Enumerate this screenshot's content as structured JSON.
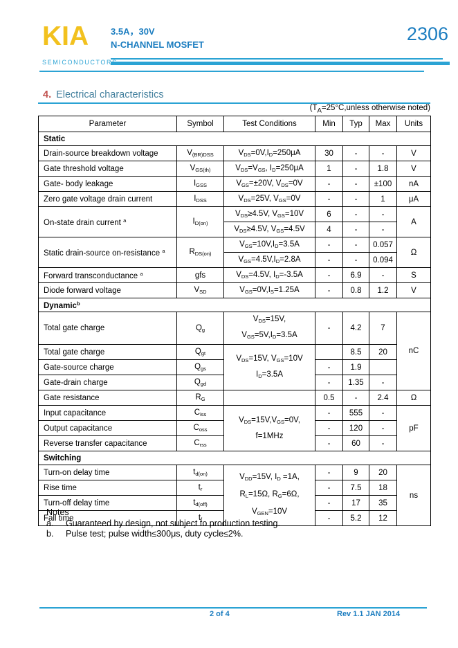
{
  "colors": {
    "accent_cyan": "#2ba3d4",
    "brand_blue": "#1b7dc0",
    "logo_yellow": "#f2c11e",
    "num_red": "#c0504d",
    "title_blue": "#44809e"
  },
  "header": {
    "brand": "KIA",
    "brand_sub": "SEMICONDUCTORS",
    "spec_line1": "3.5A，30V",
    "spec_line2": "N-CHANNEL MOSFET",
    "part_number": "2306"
  },
  "section": {
    "number": "4.",
    "title": "Electrical characteristics",
    "condition_note": "(T~A~=25°C,unless otherwise noted)"
  },
  "table": {
    "headers": {
      "parameter": "Parameter",
      "symbol": "Symbol",
      "conditions": "Test Conditions",
      "min": "Min",
      "typ": "Typ",
      "max": "Max",
      "units": "Units"
    },
    "sections": {
      "static": "Static",
      "dynamic": "Dynamic^b^",
      "switching": "Switching"
    },
    "rows": {
      "vbr": {
        "param": "Drain-source breakdown voltage",
        "symbol": "V~(BR)DSS~",
        "cond": "V~DS~=0V,I~D~=250μA",
        "min": "30",
        "typ": "-",
        "max": "-",
        "units": "V"
      },
      "vgsth": {
        "param": "Gate threshold voltage",
        "symbol": "V~GS(th)~",
        "cond": "V~DS~=V~GS~, I~D~=250μA",
        "min": "1",
        "typ": "-",
        "max": "1.8",
        "units": "V"
      },
      "igss": {
        "param": "Gate- body leakage",
        "symbol": "I~GSS~",
        "cond": "V~GS~=±20V, V~DS~=0V",
        "min": "-",
        "typ": "-",
        "max": "±100",
        "units": "nA"
      },
      "idss": {
        "param": "Zero gate voltage drain current",
        "symbol": "I~DSS~",
        "cond": "V~DS~=25V, V~GS~=0V",
        "min": "-",
        "typ": "-",
        "max": "1",
        "units": "μA"
      },
      "idon": {
        "param": "On-state drain current ^a^",
        "symbol": "I~D(on)~",
        "cond1": "V~DS~≥4.5V, V~GS~=10V",
        "min1": "6",
        "typ1": "-",
        "max1": "-",
        "cond2": "V~DS~≥4.5V, V~GS~=4.5V",
        "min2": "4",
        "typ2": "-",
        "max2": "-",
        "units": "A"
      },
      "rdson": {
        "param": "Static drain-source on-resistance ^a^",
        "symbol": "R~DS(on)~",
        "cond1": "V~GS~=10V,I~D~=3.5A",
        "min1": "-",
        "typ1": "-",
        "max1": "0.057",
        "cond2": "V~GS~=4.5V,I~D~=2.8A",
        "min2": "-",
        "typ2": "-",
        "max2": "0.094",
        "units": "Ω"
      },
      "gfs": {
        "param": "Forward transconductance ^a^",
        "symbol": "gfs",
        "cond": "V~DS~=4.5V, I~D~=-3.5A",
        "min": "-",
        "typ": "6.9",
        "max": "-",
        "units": "S"
      },
      "vsd": {
        "param": "Diode forward voltage",
        "symbol": "V~SD~",
        "cond": "V~GS~=0V,I~S~=1.25A",
        "min": "-",
        "typ": "0.8",
        "max": "1.2",
        "units": "V"
      },
      "qg": {
        "param": "Total gate charge",
        "symbol": "Q~g~",
        "cond1": "V~DS~=15V,",
        "cond2": "V~GS~=5V,I~D~=3.5A",
        "min": "-",
        "typ": "4.2",
        "max": "7"
      },
      "qgt": {
        "param": "Total gate charge",
        "symbol": "Q~gt~",
        "cond1": "V~DS~=15V, V~GS~=10V",
        "cond2": "I~D~=3.5A",
        "min": "",
        "typ": "8.5",
        "max": "20"
      },
      "qgs": {
        "param": "Gate-source charge",
        "symbol": "Q~gs~",
        "min": "-",
        "typ": "1.9",
        "max": ""
      },
      "qgd": {
        "param": "Gate-drain charge",
        "symbol": "Q~gd~",
        "min": "-",
        "typ": "1.35",
        "max": "-"
      },
      "charge_units": "nC",
      "rg": {
        "param": "Gate resistance",
        "symbol": "R~G~",
        "cond": "",
        "min": "0.5",
        "typ": "-",
        "max": "2.4",
        "units": "Ω"
      },
      "ciss": {
        "param": "Input capacitance",
        "symbol": "C~iss~",
        "min": "-",
        "typ": "555",
        "max": "-"
      },
      "coss": {
        "param": "Output capacitance",
        "symbol": "C~oss~",
        "min": "-",
        "typ": "120",
        "max": "-"
      },
      "crss": {
        "param": "Reverse transfer capacitance",
        "symbol": "C~rss~",
        "min": "-",
        "typ": "60",
        "max": "-"
      },
      "cap_cond1": "V~DS~=15V,V~GS~=0V,",
      "cap_cond2": "f=1MHz",
      "cap_units": "pF",
      "tdon": {
        "param": "Turn-on delay time",
        "symbol": "t~d(on)~",
        "min": "-",
        "typ": "9",
        "max": "20"
      },
      "tr": {
        "param": "Rise time",
        "symbol": "t~r~",
        "min": "-",
        "typ": "7.5",
        "max": "18"
      },
      "tdoff": {
        "param": "Turn-off delay time",
        "symbol": "t~d(off)~",
        "min": "-",
        "typ": "17",
        "max": "35"
      },
      "tf": {
        "param": "Fall time",
        "symbol": "t~f~",
        "min": "-",
        "typ": "5.2",
        "max": "12"
      },
      "sw_cond1": "V~DD~=15V, I~D~ =1A,",
      "sw_cond2": "R~L~=15Ω, R~G~=6Ω,",
      "sw_cond3": "V~GEN~=10V",
      "sw_units": "ns"
    }
  },
  "notes": {
    "title": "Notes",
    "a_label": "a.",
    "a_text": "Guaranteed by design, not subject to production testing.",
    "b_label": "b.",
    "b_text": "Pulse test; pulse width≤300μs, duty cycle≤2%."
  },
  "footer": {
    "page": "2 of 4",
    "rev": "Rev 1.1 JAN 2014"
  }
}
